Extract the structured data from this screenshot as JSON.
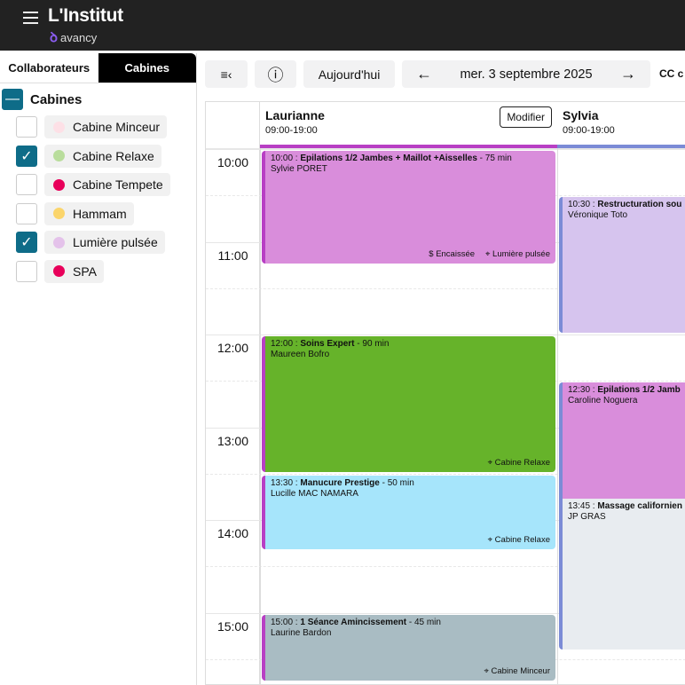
{
  "header": {
    "title": "L'Institut",
    "logo_text": "avancy"
  },
  "sidebar": {
    "tabs": [
      "Collaborateurs",
      "Cabines"
    ],
    "active_tab": "Cabines",
    "group_label": "Cabines",
    "items": [
      {
        "label": "Cabine Minceur",
        "color": "#fde0e6",
        "checked": false
      },
      {
        "label": "Cabine Relaxe",
        "color": "#b9dd9c",
        "checked": true
      },
      {
        "label": "Cabine Tempete",
        "color": "#e8005a",
        "checked": false
      },
      {
        "label": "Hammam",
        "color": "#fbd56b",
        "checked": false
      },
      {
        "label": "Lumière pulsée",
        "color": "#e4c2ea",
        "checked": true
      },
      {
        "label": "SPA",
        "color": "#e8005a",
        "checked": false
      }
    ]
  },
  "toolbar": {
    "today": "Aujourd'hui",
    "date": "mer. 3 septembre 2025",
    "extra": "CC c"
  },
  "calendar": {
    "hours": [
      "10:00",
      "11:00",
      "12:00",
      "13:00",
      "14:00",
      "15:00"
    ],
    "columns": [
      {
        "name": "Laurianne",
        "hours": "09:00-19:00",
        "color": "#b83fc4",
        "edit": "Modifier",
        "events": [
          {
            "time": "10:00",
            "title": "Epilations 1/2 Jambes + Maillot +Aisselles",
            "duration": "75 min",
            "client": "Sylvie PORET",
            "bg": "#d98ddb",
            "status": "Encaissée",
            "cabin": "Lumière pulsée"
          },
          {
            "time": "12:00",
            "title": "Soins Expert",
            "duration": "90 min",
            "client": "Maureen Bofro",
            "bg": "#66b32a",
            "status": "",
            "cabin": "Cabine Relaxe"
          },
          {
            "time": "13:30",
            "title": "Manucure Prestige",
            "duration": "50 min",
            "client": "Lucille MAC NAMARA",
            "bg": "#a6e5fb",
            "status": "",
            "cabin": "Cabine Relaxe"
          },
          {
            "time": "15:00",
            "title": "1 Séance Amincissement",
            "duration": "45 min",
            "client": "Laurine Bardon",
            "bg": "#a9bcc3",
            "status": "",
            "cabin": "Cabine Minceur"
          }
        ]
      },
      {
        "name": "Sylvia",
        "hours": "09:00-19:00",
        "color": "#7b8bd6",
        "events": [
          {
            "time": "10:30",
            "title": "Restructuration sou",
            "client": "Véronique Toto",
            "bg": "#d6c4ee"
          },
          {
            "time": "12:30",
            "title": "Epilations 1/2 Jamb",
            "client": "Caroline Noguera",
            "bg": "#d98ddb"
          },
          {
            "time": "13:45",
            "title": "Massage californien",
            "client": "JP GRAS",
            "bg": "#e8ecf0"
          }
        ]
      }
    ]
  }
}
